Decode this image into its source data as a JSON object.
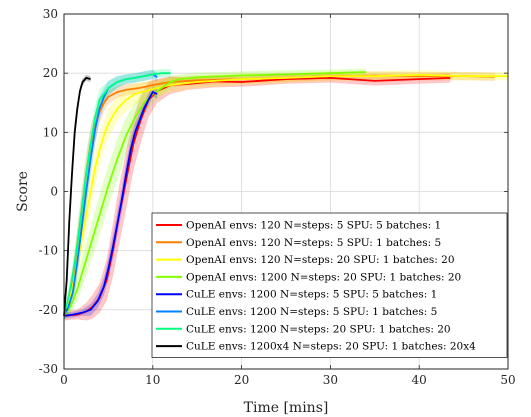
{
  "chart_data": {
    "type": "line",
    "xlabel": "Time [mins]",
    "ylabel": "Score",
    "xlim": [
      0,
      50
    ],
    "ylim": [
      -30,
      30
    ],
    "xticks": [
      0,
      10,
      20,
      30,
      40,
      50
    ],
    "yticks": [
      -30,
      -20,
      -10,
      0,
      10,
      20,
      30
    ],
    "grid": true,
    "legend_position": "bottom-right",
    "series": [
      {
        "name": "OpenAI envs: 120 N=steps: 5 SPU: 5 batches: 1",
        "color": "#ff0000",
        "x": [
          0,
          1.5,
          2.5,
          3.2,
          4,
          4.8,
          5.5,
          6.2,
          7,
          7.8,
          8.6,
          9.5,
          10.5,
          12,
          14,
          17,
          20,
          25,
          30,
          35,
          40,
          43.5
        ],
        "y": [
          -21,
          -20.8,
          -20.3,
          -19.5,
          -18,
          -15,
          -10,
          -4,
          2,
          8,
          12,
          15.5,
          17,
          18,
          18.2,
          18.6,
          18.5,
          19,
          19.2,
          18.7,
          19,
          19.2
        ],
        "band": [
          0.8,
          0.8,
          1.5,
          2,
          2.5,
          3.5,
          4.5,
          5,
          5,
          4.5,
          4,
          3,
          2,
          1.5,
          1,
          1,
          0.8,
          0.8,
          0.8,
          0.8,
          0.8,
          0.8
        ]
      },
      {
        "name": "OpenAI envs: 120 N=steps: 5 SPU: 1 batches: 5",
        "color": "#ff8000",
        "x": [
          0,
          0.5,
          1,
          1.5,
          2,
          2.5,
          3,
          3.5,
          4,
          4.5,
          5,
          6,
          7,
          8.5,
          10,
          12,
          15,
          20,
          25,
          30,
          35,
          40,
          45,
          48.5
        ],
        "y": [
          -21,
          -19,
          -15,
          -9,
          -3,
          3,
          8,
          11,
          13.5,
          15,
          16,
          16.8,
          17.2,
          17.5,
          18,
          18.5,
          18.8,
          19,
          19.2,
          19.5,
          19.6,
          19.5,
          19.5,
          19.4
        ],
        "band": [
          0.8,
          1.5,
          2.5,
          3,
          3.5,
          3.5,
          3,
          2.5,
          2,
          1.5,
          1.2,
          1,
          1,
          0.8,
          0.8,
          0.8,
          0.8,
          0.7,
          0.7,
          0.7,
          0.7,
          0.7,
          0.7,
          0.7
        ]
      },
      {
        "name": "OpenAI envs: 120 N=steps: 20 SPU: 1 batches: 20",
        "color": "#ffff00",
        "x": [
          0,
          0.5,
          1,
          1.5,
          2,
          2.5,
          3,
          3.5,
          4,
          4.5,
          5,
          6,
          7,
          8,
          10,
          12,
          15,
          20,
          25,
          30,
          35,
          40,
          45,
          50
        ],
        "y": [
          -21,
          -19,
          -16,
          -12,
          -8,
          -4,
          0,
          4,
          7,
          9.5,
          11.5,
          14,
          15.5,
          16.5,
          17.3,
          18,
          18.5,
          19,
          19.2,
          19.5,
          19.5,
          19.7,
          19.5,
          19.5
        ],
        "band": [
          0.8,
          1.5,
          2.5,
          3,
          3.5,
          3.5,
          3.5,
          3,
          3,
          2.5,
          2.5,
          2,
          2,
          1.8,
          1.5,
          1.2,
          1,
          1,
          0.8,
          0.8,
          0.8,
          0.8,
          0.7,
          0.7
        ]
      },
      {
        "name": "OpenAI envs: 1200 N=steps: 20 SPU: 1 batches: 20",
        "color": "#80ff00",
        "x": [
          0,
          0.5,
          1,
          1.5,
          2,
          3,
          4,
          5,
          6,
          7,
          8,
          9,
          10,
          11,
          12,
          13,
          15,
          18,
          20,
          25,
          30,
          34
        ],
        "y": [
          -21,
          -20,
          -18.5,
          -16.5,
          -14,
          -9,
          -4,
          1,
          5.5,
          9.5,
          12.5,
          15,
          16.5,
          17.5,
          18.5,
          19,
          19.3,
          19.5,
          19.6,
          19.8,
          20,
          20.2
        ],
        "band": [
          0.8,
          1,
          1.5,
          2,
          2.5,
          3,
          3.5,
          3.5,
          3.5,
          3,
          2.5,
          2,
          1.5,
          1.2,
          1,
          0.8,
          0.8,
          0.7,
          0.7,
          0.7,
          0.6,
          0.6
        ]
      },
      {
        "name": "CuLE envs: 1200 N=steps: 5 SPU: 5 batches: 1",
        "color": "#0000ff",
        "x": [
          0,
          1,
          2,
          3,
          3.8,
          4.5,
          5,
          5.5,
          6,
          6.5,
          7,
          7.5,
          8,
          8.5,
          9,
          9.5,
          10,
          10.5
        ],
        "y": [
          -21,
          -20.8,
          -20.5,
          -20,
          -18.5,
          -16,
          -13,
          -9.5,
          -5.5,
          -1.5,
          3,
          7,
          10,
          12,
          14,
          15.5,
          16.8,
          16.5
        ],
        "band": [
          0.5,
          0.5,
          0.5,
          1,
          1.2,
          1.5,
          1.8,
          2,
          2,
          2,
          2,
          1.8,
          1.5,
          1.2,
          1,
          1,
          0.8,
          0.8
        ]
      },
      {
        "name": "CuLE envs: 1200 N=steps: 5 SPU: 1 batches: 5",
        "color": "#0080ff",
        "x": [
          0,
          0.5,
          1,
          1.5,
          2,
          2.5,
          3,
          3.5,
          4,
          4.5,
          5,
          6,
          7,
          8,
          9,
          10,
          10.5
        ],
        "y": [
          -21,
          -19.5,
          -17,
          -12,
          -6,
          0,
          5.5,
          10.5,
          14,
          16,
          17.5,
          18.5,
          19,
          19.2,
          19.5,
          19.8,
          19.3
        ],
        "band": [
          0.8,
          1,
          2,
          2.5,
          3,
          3,
          2.8,
          2.5,
          2,
          1.5,
          1.2,
          1,
          0.8,
          0.8,
          0.8,
          0.8,
          0.8
        ]
      },
      {
        "name": "CuLE envs: 1200 N=steps: 20 SPU: 1 batches: 20",
        "color": "#00ff80",
        "x": [
          0,
          0.5,
          1,
          1.5,
          2,
          2.5,
          3,
          3.5,
          4,
          5,
          6,
          7,
          8,
          9,
          10,
          11,
          12
        ],
        "y": [
          -21,
          -18,
          -14,
          -9,
          -3,
          3,
          8,
          12.5,
          15.5,
          17.5,
          18.5,
          19,
          19.2,
          19.5,
          19.8,
          20,
          20
        ],
        "band": [
          0.8,
          1.5,
          2,
          2.5,
          2.8,
          2.8,
          2.5,
          2,
          1.8,
          1.2,
          1,
          0.8,
          0.8,
          0.8,
          0.7,
          0.7,
          0.7
        ]
      },
      {
        "name": "CuLE envs: 1200x4 N=steps: 20 SPU: 1 batches: 20x4",
        "color": "#000000",
        "x": [
          0,
          0.3,
          0.6,
          0.9,
          1.2,
          1.5,
          1.8,
          2.1,
          2.5,
          3
        ],
        "y": [
          -21,
          -15,
          -5,
          3,
          10,
          14,
          17,
          18.5,
          19.2,
          19
        ],
        "band": [
          0.8,
          1.5,
          2,
          2,
          1.8,
          1.2,
          0.8,
          0.6,
          0.5,
          0.5
        ]
      }
    ]
  }
}
